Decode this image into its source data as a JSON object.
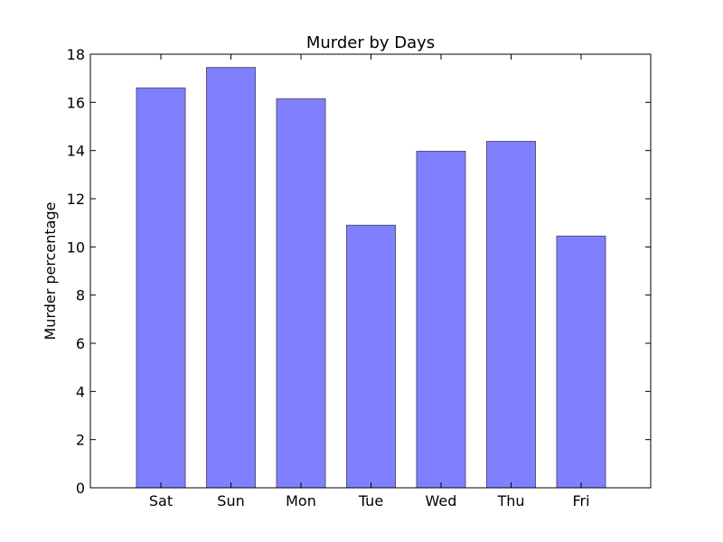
{
  "chart_data": {
    "type": "bar",
    "title": "Murder by Days",
    "xlabel": "",
    "ylabel": "Murder percentage",
    "categories": [
      "Sat",
      "Sun",
      "Mon",
      "Tue",
      "Wed",
      "Thu",
      "Fri"
    ],
    "values": [
      16.6,
      17.45,
      16.15,
      10.9,
      13.97,
      14.38,
      10.45
    ],
    "ylim": [
      0,
      18
    ],
    "yticks": [
      0,
      2,
      4,
      6,
      8,
      10,
      12,
      14,
      16,
      18
    ],
    "ytick_labels": [
      "0",
      "2",
      "4",
      "6",
      "8",
      "10",
      "12",
      "14",
      "16",
      "18"
    ],
    "grid": false,
    "legend": "none",
    "colors": {
      "bar_fill": "#8080ff",
      "bar_edge": "#555577",
      "axis": "#000000"
    }
  }
}
